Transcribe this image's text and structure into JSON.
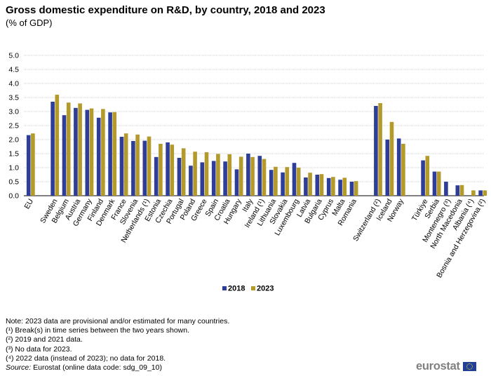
{
  "header": {
    "title": "Gross domestic expenditure on R&D, by country, 2018 and 2023",
    "subtitle": "(% of GDP)"
  },
  "colors": {
    "series_2018": "#2e3d98",
    "series_2023": "#b39a2b",
    "grid": "#d0d0d0",
    "axis_text": "#000000"
  },
  "chart_data": {
    "type": "bar",
    "title": "Gross domestic expenditure on R&D, by country, 2018 and 2023",
    "subtitle": "(% of GDP)",
    "xlabel": "",
    "ylabel": "",
    "ylim": [
      0,
      5.0
    ],
    "yticks": [
      "0.0",
      "0.5",
      "1.0",
      "1.5",
      "2.0",
      "2.5",
      "3.0",
      "3.5",
      "4.0",
      "4.5",
      "5.0"
    ],
    "grid": true,
    "legend_position": "bottom-center",
    "groups": [
      [
        "EU"
      ],
      [
        "Sweden",
        "Belgium",
        "Austria",
        "Germany",
        "Finland",
        "Denmark",
        "France",
        "Slovenia",
        "Netherlands (¹)",
        "Estonia",
        "Czechia",
        "Portugal",
        "Poland",
        "Greece",
        "Spain",
        "Croatia",
        "Hungary",
        "Italy",
        "Ireland (¹)",
        "Lithuania",
        "Slovakia",
        "Luxembourg",
        "Latvia",
        "Bulgaria",
        "Cyprus",
        "Malta",
        "Romania"
      ],
      [
        "Switzerland (²)",
        "Iceland",
        "Norway"
      ],
      [
        "Türkiye",
        "Serbia",
        "Montenegro (³)",
        "North Macedonia",
        "Albania (⁴)",
        "Bosnia and Herzegovina (²)"
      ]
    ],
    "categories": [
      "EU",
      "Sweden",
      "Belgium",
      "Austria",
      "Germany",
      "Finland",
      "Denmark",
      "France",
      "Slovenia",
      "Netherlands (¹)",
      "Estonia",
      "Czechia",
      "Portugal",
      "Poland",
      "Greece",
      "Spain",
      "Croatia",
      "Hungary",
      "Italy",
      "Ireland (¹)",
      "Lithuania",
      "Slovakia",
      "Luxembourg",
      "Latvia",
      "Bulgaria",
      "Cyprus",
      "Malta",
      "Romania",
      "Switzerland (²)",
      "Iceland",
      "Norway",
      "Türkiye",
      "Serbia",
      "Montenegro (³)",
      "North Macedonia",
      "Albania (⁴)",
      "Bosnia and Herzegovina (²)"
    ],
    "series": [
      {
        "name": "2018",
        "values": [
          2.16,
          3.35,
          2.87,
          3.13,
          3.06,
          2.78,
          2.97,
          2.1,
          1.95,
          1.96,
          1.38,
          1.9,
          1.35,
          1.07,
          1.19,
          1.24,
          1.22,
          0.94,
          1.5,
          1.42,
          0.92,
          0.83,
          1.17,
          0.65,
          0.75,
          0.63,
          0.57,
          0.5,
          3.2,
          2.0,
          2.04,
          1.26,
          0.86,
          0.5,
          0.37,
          null,
          0.19
        ]
      },
      {
        "name": "2023",
        "values": [
          2.22,
          3.6,
          3.32,
          3.29,
          3.11,
          3.09,
          2.98,
          2.22,
          2.18,
          2.11,
          1.85,
          1.82,
          1.69,
          1.57,
          1.55,
          1.49,
          1.48,
          1.39,
          1.38,
          1.31,
          1.03,
          1.02,
          1.0,
          0.82,
          0.77,
          0.67,
          0.64,
          0.52,
          3.3,
          2.63,
          1.85,
          1.42,
          0.86,
          null,
          0.38,
          0.19,
          0.19
        ]
      }
    ]
  },
  "legend": {
    "label_2018": "2018",
    "label_2023": "2023"
  },
  "notes": {
    "note": "Note: 2023 data are provisional and/or estimated for many countries.",
    "fn1": "(¹) Break(s) in time series between the two years shown.",
    "fn2": "(²) 2019 and 2021 data.",
    "fn3": "(³) No data for 2023.",
    "fn4": "(⁴) 2022 data (instead of 2023); no data for 2018.",
    "source_label": "Source:",
    "source_text": " Eurostat (online data code: sdg_09_10)"
  },
  "logo": {
    "text": "eurostat",
    "flag_icon": "eu-flag-icon"
  }
}
